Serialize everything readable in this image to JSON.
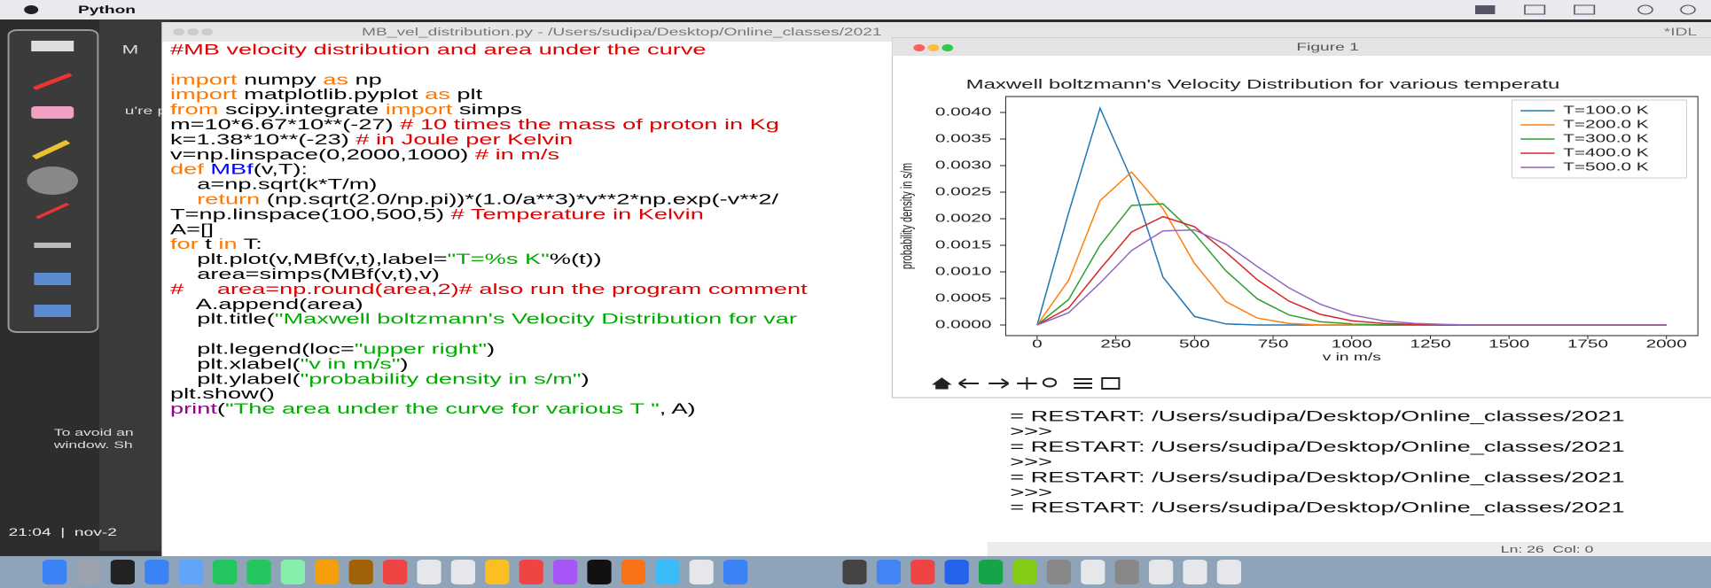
{
  "menu_bar": {
    "app": "Python"
  },
  "background": {
    "texts": [
      "M",
      "u're pr",
      "To avoid an",
      "window. Sh",
      "21:04  |  nov-2"
    ]
  },
  "editor": {
    "title": "MB_vel_distribution.py - /Users/sudipa/Desktop/Online_classes/2021",
    "code": [
      [
        {
          "text": "#MB velocity distribution and area under the curve",
          "color": "#dd0000"
        }
      ],
      [],
      [
        {
          "text": "import",
          "color": "#ff7700"
        },
        {
          "text": " numpy ",
          "color": "#000000"
        },
        {
          "text": "as",
          "color": "#ff7700"
        },
        {
          "text": " np",
          "color": "#000000"
        }
      ],
      [
        {
          "text": "import",
          "color": "#ff7700"
        },
        {
          "text": " matplotlib.pyplot ",
          "color": "#000000"
        },
        {
          "text": "as",
          "color": "#ff7700"
        },
        {
          "text": " plt",
          "color": "#000000"
        }
      ],
      [
        {
          "text": "from",
          "color": "#ff7700"
        },
        {
          "text": " scipy.integrate ",
          "color": "#000000"
        },
        {
          "text": "import",
          "color": "#ff7700"
        },
        {
          "text": " simps",
          "color": "#000000"
        }
      ],
      [
        {
          "text": "m=10*6.67*10**(-27) ",
          "color": "#000000"
        },
        {
          "text": "# 10 times the mass of proton in Kg",
          "color": "#dd0000"
        }
      ],
      [
        {
          "text": "k=1.38*10**(-23) ",
          "color": "#000000"
        },
        {
          "text": "# in Joule per Kelvin",
          "color": "#dd0000"
        }
      ],
      [
        {
          "text": "v=np.linspace(0,2000,1000) ",
          "color": "#000000"
        },
        {
          "text": "# in m/s",
          "color": "#dd0000"
        }
      ],
      [
        {
          "text": "def ",
          "color": "#ff7700"
        },
        {
          "text": "MBf",
          "color": "#0000ff"
        },
        {
          "text": "(v,T):",
          "color": "#000000"
        }
      ],
      [
        {
          "text": "    a=np.sqrt(k*T/m)",
          "color": "#000000"
        }
      ],
      [
        {
          "text": "    return",
          "color": "#ff7700"
        },
        {
          "text": " (np.sqrt(2.0/np.pi))*(1.0/a**3)*v**2*np.exp(-v**2/",
          "color": "#000000"
        }
      ],
      [
        {
          "text": "T=np.linspace(100,500,5) ",
          "color": "#000000"
        },
        {
          "text": "# Temperature in Kelvin",
          "color": "#dd0000"
        }
      ],
      [
        {
          "text": "A=[]",
          "color": "#000000"
        }
      ],
      [
        {
          "text": "for",
          "color": "#ff7700"
        },
        {
          "text": " t ",
          "color": "#000000"
        },
        {
          "text": "in",
          "color": "#ff7700"
        },
        {
          "text": " T:",
          "color": "#000000"
        }
      ],
      [
        {
          "text": "    plt.plot(v,MBf(v,t),label=",
          "color": "#000000"
        },
        {
          "text": "\"T=%s K\"",
          "color": "#00aa00"
        },
        {
          "text": "%(t))",
          "color": "#000000"
        }
      ],
      [
        {
          "text": "    area=simps(MBf(v,t),v)",
          "color": "#000000"
        }
      ],
      [
        {
          "text": "#     area=np.round(area,2)# also run the program comment",
          "color": "#dd0000"
        }
      ],
      [
        {
          "text": "    A.append(area)",
          "color": "#000000"
        }
      ],
      [
        {
          "text": "    plt.title(",
          "color": "#000000"
        },
        {
          "text": "\"Maxwell boltzmann's Velocity Distribution for var",
          "color": "#00aa00"
        }
      ],
      [],
      [
        {
          "text": "    plt.legend(loc=",
          "color": "#000000"
        },
        {
          "text": "\"upper right\"",
          "color": "#00aa00"
        },
        {
          "text": ")",
          "color": "#000000"
        }
      ],
      [
        {
          "text": "    plt.xlabel(",
          "color": "#000000"
        },
        {
          "text": "\"v in m/s\"",
          "color": "#00aa00"
        },
        {
          "text": ")",
          "color": "#000000"
        }
      ],
      [
        {
          "text": "    plt.ylabel(",
          "color": "#000000"
        },
        {
          "text": "\"probability density in s/m\"",
          "color": "#00aa00"
        },
        {
          "text": ")",
          "color": "#000000"
        }
      ],
      [
        {
          "text": "plt.show()",
          "color": "#000000"
        }
      ],
      [
        {
          "text": "print",
          "color": "#900090"
        },
        {
          "text": "(",
          "color": "#000000"
        },
        {
          "text": "\"The area under the curve for various T \"",
          "color": "#00aa00"
        },
        {
          "text": ", A)",
          "color": "#000000"
        }
      ]
    ]
  },
  "shell": {
    "title": "*IDL",
    "lines": [
      "= RESTART: /Users/sudipa/Desktop/Online_classes/2021",
      ">>>",
      "= RESTART: /Users/sudipa/Desktop/Online_classes/2021",
      ">>>",
      "= RESTART: /Users/sudipa/Desktop/Online_classes/2021",
      ">>>",
      "= RESTART: /Users/sudipa/Desktop/Online_classes/2021"
    ],
    "status": "Ln: 26  Col: 0"
  },
  "figure_window": {
    "title": "Figure 1"
  },
  "chart_data": {
    "type": "line",
    "title": "Maxwell boltzmann's Velocity Distribution for various temperatu",
    "xlabel": "v in m/s",
    "ylabel": "probability density in s/m",
    "x": [
      0,
      100,
      200,
      300,
      400,
      500,
      600,
      700,
      800,
      900,
      1000,
      1100,
      1200,
      1300,
      1400,
      1500,
      1600,
      1700,
      1800,
      1900,
      2000
    ],
    "series": [
      {
        "name": "T=100.0 K",
        "color": "#1f77b4",
        "values": [
          0,
          0.00211,
          0.00408,
          0.00274,
          0.0009,
          0.00016,
          2e-05,
          0,
          0,
          0,
          0,
          0,
          0,
          0,
          0,
          0,
          0,
          0,
          0,
          0,
          0
        ]
      },
      {
        "name": "T=200.0 K",
        "color": "#ff7f0e",
        "values": [
          0,
          0.00084,
          0.00234,
          0.00288,
          0.00219,
          0.00116,
          0.00044,
          0.00013,
          3e-05,
          0,
          0,
          0,
          0,
          0,
          0,
          0,
          0,
          0,
          0,
          0,
          0
        ]
      },
      {
        "name": "T=300.0 K",
        "color": "#2ca02c",
        "values": [
          0,
          0.00048,
          0.0015,
          0.00225,
          0.00228,
          0.00172,
          0.00102,
          0.00049,
          0.00019,
          6e-05,
          2e-05,
          0,
          0,
          0,
          0,
          0,
          0,
          0,
          0,
          0,
          0
        ]
      },
      {
        "name": "T=400.0 K",
        "color": "#d62728",
        "values": [
          0,
          0.00032,
          0.00105,
          0.00175,
          0.00204,
          0.00185,
          0.00137,
          0.00085,
          0.00045,
          0.0002,
          8e-05,
          3e-05,
          1e-05,
          0,
          0,
          0,
          0,
          0,
          0,
          0,
          0
        ]
      },
      {
        "name": "T=500.0 K",
        "color": "#9467bd",
        "values": [
          0,
          0.00023,
          0.00079,
          0.0014,
          0.00177,
          0.00179,
          0.00152,
          0.0011,
          0.0007,
          0.00039,
          0.00019,
          8e-05,
          3e-05,
          1e-05,
          0,
          0,
          0,
          0,
          0,
          0,
          0
        ]
      }
    ],
    "xlim": [
      -100,
      2100
    ],
    "ylim": [
      -0.0002,
      0.0043
    ],
    "xticks": [
      0,
      250,
      500,
      750,
      1000,
      1250,
      1500,
      1750,
      2000
    ],
    "yticks": [
      {
        "value": 0,
        "label": "0.0000"
      },
      {
        "value": 0.0005,
        "label": "0.0005"
      },
      {
        "value": 0.001,
        "label": "0.0010"
      },
      {
        "value": 0.0015,
        "label": "0.0015"
      },
      {
        "value": 0.002,
        "label": "0.0020"
      },
      {
        "value": 0.0025,
        "label": "0.0025"
      },
      {
        "value": 0.003,
        "label": "0.0030"
      },
      {
        "value": 0.0035,
        "label": "0.0035"
      },
      {
        "value": 0.004,
        "label": "0.0040"
      }
    ],
    "grid": false,
    "legend": "upper right"
  }
}
